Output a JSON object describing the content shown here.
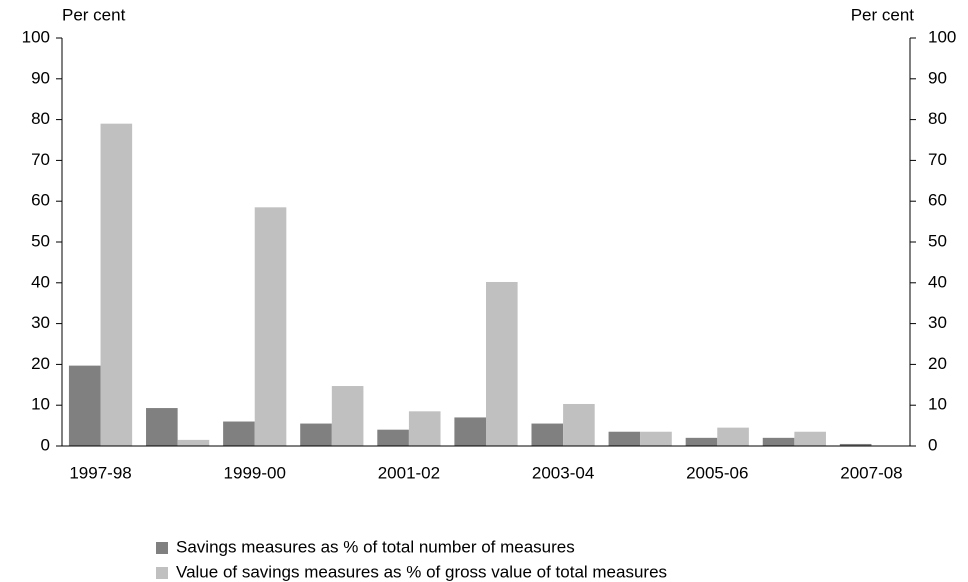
{
  "chart_data": {
    "type": "bar",
    "y_label": "Per cent",
    "y2_label": "Per cent",
    "categories": [
      "1997-98",
      null,
      "1999-00",
      null,
      "2001-02",
      null,
      "2003-04",
      null,
      "2005-06",
      null,
      "2007-08"
    ],
    "series": [
      {
        "name": "Savings measures as % of total number of measures",
        "color": "#808080",
        "values": [
          19.7,
          9.3,
          6,
          5.5,
          4,
          7,
          5.5,
          3.5,
          2,
          2,
          0.5
        ]
      },
      {
        "name": "Value of savings measures as % of gross value of total measures",
        "color": "#c0c0c0",
        "values": [
          79,
          1.5,
          58.5,
          14.7,
          8.5,
          40.2,
          10.3,
          3.5,
          4.5,
          3.5,
          0
        ]
      }
    ],
    "ylim": [
      0,
      100
    ],
    "yticks": [
      0,
      10,
      20,
      30,
      40,
      50,
      60,
      70,
      80,
      90,
      100
    ],
    "y2lim": [
      0,
      100
    ],
    "y2ticks": [
      0,
      10,
      20,
      30,
      40,
      50,
      60,
      70,
      80,
      90,
      100
    ],
    "grid": false
  }
}
